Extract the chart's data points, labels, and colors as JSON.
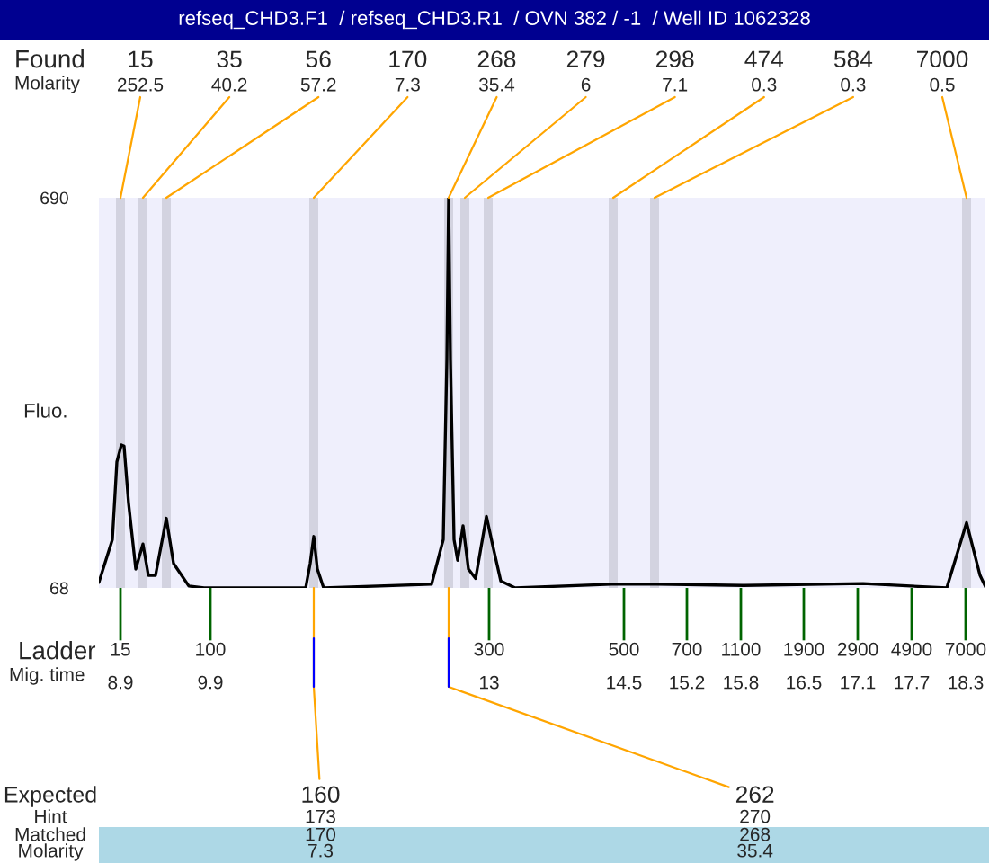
{
  "chart_data": {
    "type": "line",
    "title": "refseq_CHD3.F1  / refseq_CHD3.R1  / OVN 382 / -1  / Well ID 1062328",
    "ylabel": "Fluo.",
    "series": [
      {
        "color": "#000000",
        "x": [
          8.66,
          8.81,
          8.86,
          8.91,
          8.94,
          8.99,
          9.07,
          9.15,
          9.21,
          9.29,
          9.41,
          9.49,
          9.66,
          9.83,
          10.96,
          11.01,
          11.05,
          11.09,
          11.16,
          12.36,
          12.49,
          12.53,
          12.55,
          12.57,
          12.61,
          12.65,
          12.71,
          12.77,
          12.85,
          12.97,
          13.04,
          13.13,
          13.29,
          14.36,
          14.86,
          15.83,
          17.16,
          18.09,
          18.31,
          18.46,
          18.52
        ],
        "values": [
          77,
          145,
          269,
          296,
          294,
          203,
          98,
          138,
          88,
          88,
          179,
          107,
          71,
          68,
          68,
          107,
          150,
          98,
          68,
          74,
          145,
          432,
          690,
          432,
          145,
          112,
          167,
          98,
          83,
          182,
          136,
          79,
          68,
          74,
          74,
          72,
          75,
          68,
          172,
          88,
          70
        ]
      }
    ],
    "xlim": [
      8.66,
      18.52
    ],
    "ylim": [
      68,
      690
    ],
    "yticks": [
      68,
      690
    ],
    "xticks": [
      8.9,
      9.9,
      13,
      14.5,
      15.2,
      15.8,
      16.5,
      17.1,
      17.7,
      18.3
    ],
    "bands": [
      {
        "axis": "x",
        "from": 8.85,
        "to": 8.95,
        "label": "15\n252.5",
        "color": "#d3d3e0"
      },
      {
        "axis": "x",
        "from": 9.1,
        "to": 9.2,
        "label": "35\n40.2",
        "color": "#d3d3e0"
      },
      {
        "axis": "x",
        "from": 9.36,
        "to": 9.46,
        "label": "56\n57.2",
        "color": "#d3d3e0"
      },
      {
        "axis": "x",
        "from": 11.0,
        "to": 11.1,
        "label": "170\n7.3",
        "color": "#d3d3e0"
      },
      {
        "axis": "x",
        "from": 12.5,
        "to": 12.6,
        "label": "268\n35.4",
        "color": "#d3d3e0"
      },
      {
        "axis": "x",
        "from": 12.68,
        "to": 12.78,
        "label": "279\n6",
        "color": "#d3d3e0"
      },
      {
        "axis": "x",
        "from": 12.94,
        "to": 13.04,
        "label": "298\n7.1",
        "color": "#d3d3e0"
      },
      {
        "axis": "x",
        "from": 14.33,
        "to": 14.43,
        "label": "474\n0.3",
        "color": "#d3d3e0"
      },
      {
        "axis": "x",
        "from": 14.79,
        "to": 14.89,
        "label": "584\n0.3",
        "color": "#d3d3e0"
      },
      {
        "axis": "x",
        "from": 18.26,
        "to": 18.36,
        "label": "7000\n0.5",
        "color": "#d3d3e0"
      }
    ],
    "annotations": [
      "Found",
      "Molarity",
      "Ladder",
      "Mig. time",
      "Expected",
      "Hint",
      "Matched",
      "Molarity",
      "15",
      "100",
      "300",
      "500",
      "700",
      "1100",
      "1900",
      "2900",
      "4900",
      "7000",
      "173",
      "170",
      "7.3",
      "270",
      "268",
      "35.4",
      {
        "text": "160",
        "x": 11.05,
        "y": 68
      },
      {
        "text": "262",
        "x": 12.55,
        "y": 68
      }
    ],
    "grid": false,
    "legend": false,
    "marker": "none",
    "line_style": "solid"
  }
}
